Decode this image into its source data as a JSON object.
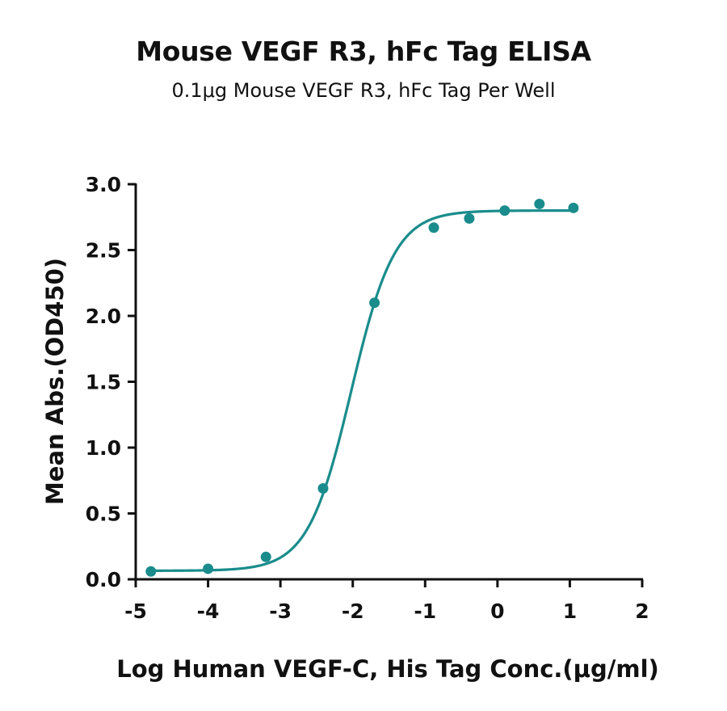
{
  "chart_data": {
    "type": "scatter",
    "title": "Mouse VEGF R3, hFc Tag ELISA",
    "subtitle": "0.1μg Mouse VEGF R3, hFc Tag Per Well",
    "xlabel": "Log Human VEGF-C, His Tag Conc.(μg/ml)",
    "ylabel": "Mean Abs.(OD450)",
    "xlim": [
      -5,
      2
    ],
    "ylim": [
      0.0,
      3.0
    ],
    "x_ticks": [
      "-5",
      "-4",
      "-3",
      "-2",
      "-1",
      "0",
      "1",
      "2"
    ],
    "y_ticks": [
      "0.0",
      "0.5",
      "1.0",
      "1.5",
      "2.0",
      "2.5",
      "3.0"
    ],
    "grid": false,
    "color": "#1a8c8c",
    "series": [
      {
        "x": [
          -4.79,
          -4.0,
          -3.2,
          -2.41,
          -1.7,
          -0.88,
          -0.39,
          0.1,
          0.58,
          1.05
        ],
        "y": [
          0.06,
          0.08,
          0.17,
          0.69,
          2.1,
          2.67,
          2.74,
          2.8,
          2.85,
          2.82
        ]
      }
    ],
    "fit": {
      "model": "4PL",
      "bottom": 0.065,
      "top": 2.8,
      "logEC50": -2.02,
      "hill": 1.45
    }
  }
}
